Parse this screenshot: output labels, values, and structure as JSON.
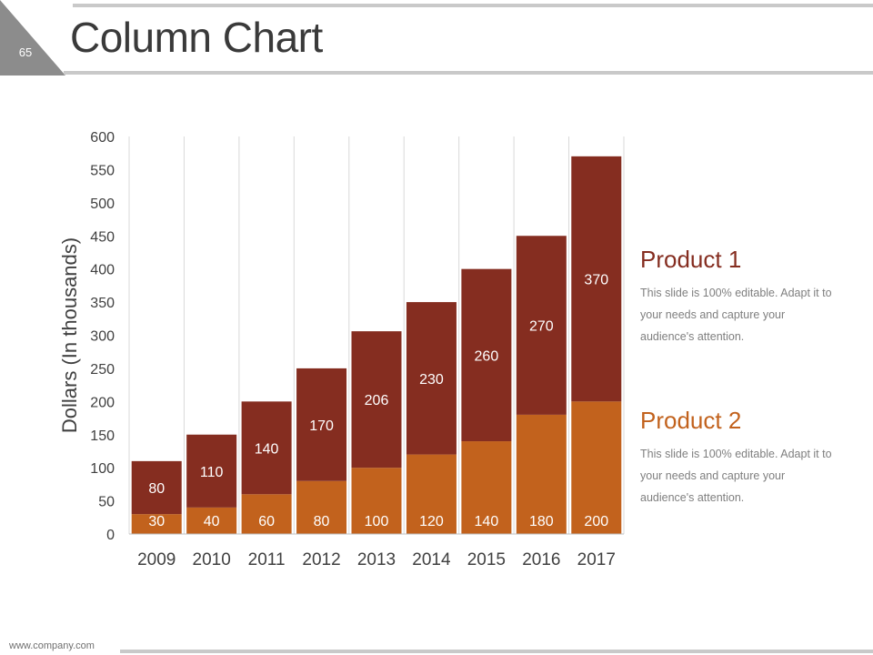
{
  "slide": {
    "number": "65",
    "title": "Column Chart",
    "footer_url": "www.company.com"
  },
  "legend": [
    {
      "name": "Product 1",
      "color": "#852d20",
      "description": "This slide is 100% editable. Adapt it to your needs and capture your audience's attention."
    },
    {
      "name": "Product 2",
      "color": "#c2621d",
      "description": "This slide is 100% editable. Adapt it to your needs and capture your audience's attention."
    }
  ],
  "chart_data": {
    "type": "bar",
    "stacked": true,
    "title": "",
    "xlabel": "",
    "ylabel": "Dollars (In thousands)",
    "ylim": [
      0,
      600
    ],
    "yticks": [
      0,
      50,
      100,
      150,
      200,
      250,
      300,
      350,
      400,
      450,
      500,
      550,
      600
    ],
    "categories": [
      "2009",
      "2010",
      "2011",
      "2012",
      "2013",
      "2014",
      "2015",
      "2016",
      "2017"
    ],
    "series": [
      {
        "name": "Product 2",
        "color": "#c2621d",
        "values": [
          30,
          40,
          60,
          80,
          100,
          120,
          140,
          180,
          200
        ]
      },
      {
        "name": "Product 1",
        "color": "#852d20",
        "values": [
          80,
          110,
          140,
          170,
          206,
          230,
          260,
          270,
          370
        ]
      }
    ]
  }
}
